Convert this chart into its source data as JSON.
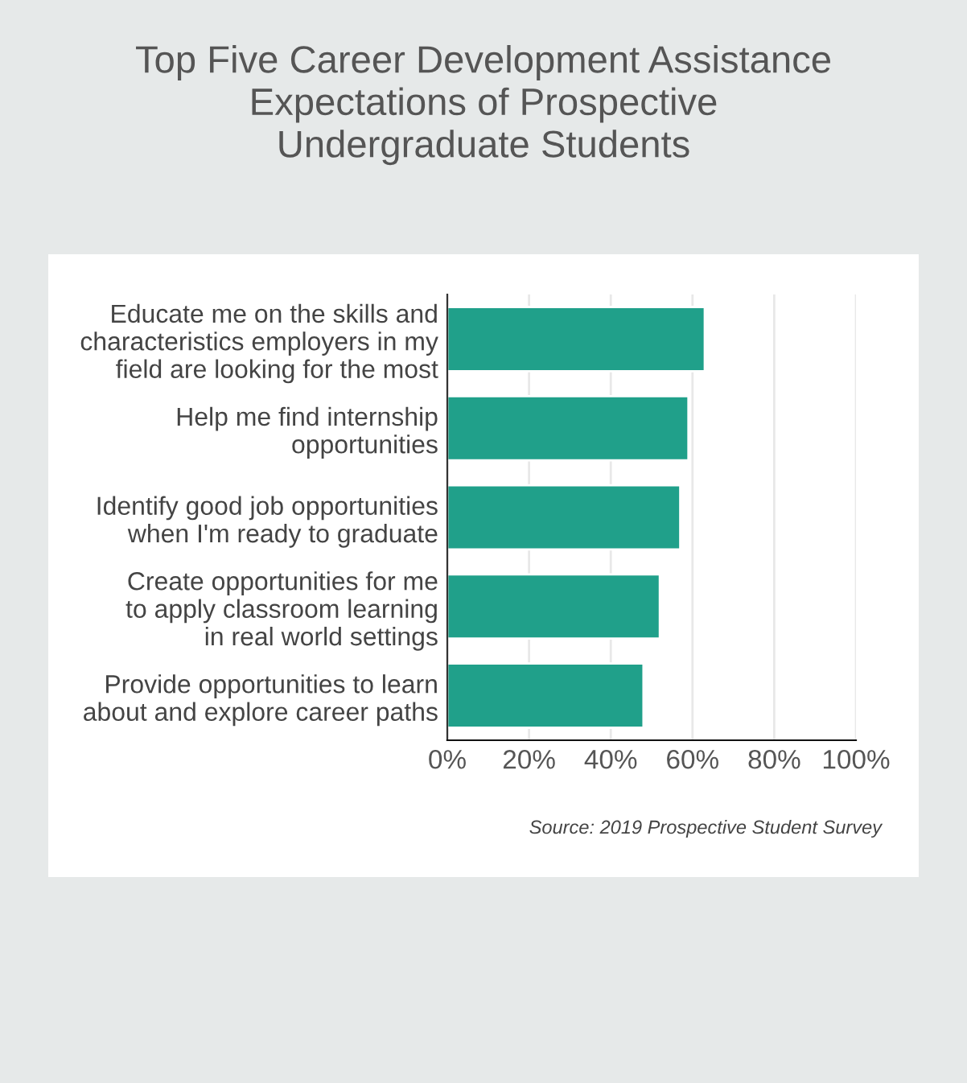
{
  "chart_data": {
    "type": "bar",
    "orientation": "horizontal",
    "title": "Top Five Career Development Assistance\nExpectations of Prospective\nUndergraduate Students",
    "categories": [
      "Educate me on the skills and\ncharacteristics employers in my\nfield are looking for the most",
      "Help me find internship\nopportunities",
      "Identify good job opportunities\nwhen I'm ready to graduate",
      "Create opportunities for me\nto apply classroom learning\nin real world settings",
      "Provide opportunities to learn\nabout and explore career paths"
    ],
    "values": [
      63,
      59,
      57,
      52,
      48
    ],
    "color": "#20a08a",
    "xlim": [
      0,
      100
    ],
    "xticks": [
      {
        "value": 0,
        "label": "0%"
      },
      {
        "value": 20,
        "label": "20%"
      },
      {
        "value": 40,
        "label": "40%"
      },
      {
        "value": 60,
        "label": "60%"
      },
      {
        "value": 80,
        "label": "80%"
      },
      {
        "value": 100,
        "label": "100%"
      }
    ],
    "grid": "x",
    "annotations": [
      "Source: 2019 Prospective Student Survey"
    ]
  }
}
